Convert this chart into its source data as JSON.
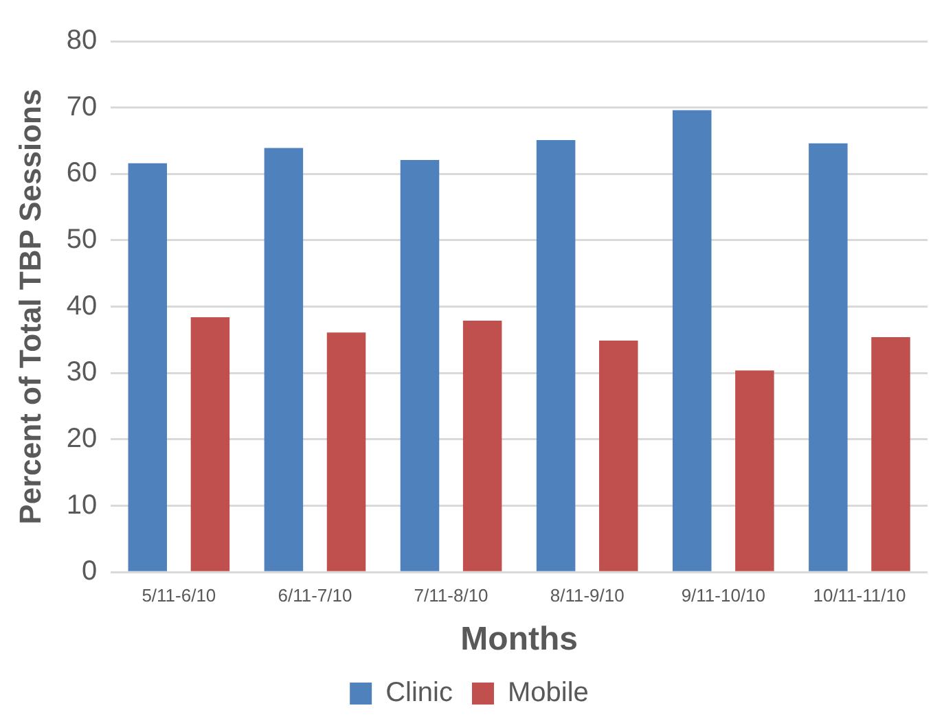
{
  "chart_data": {
    "type": "bar",
    "xlabel": "Months",
    "ylabel": "Percent of Total TBP Sessions",
    "categories": [
      "5/11-6/10",
      "6/11-7/10",
      "7/11-8/10",
      "8/11-9/10",
      "9/11-10/10",
      "10/11-11/10"
    ],
    "series": [
      {
        "name": "Clinic",
        "color": "#4f81bd",
        "values": [
          61.6,
          63.9,
          62.1,
          65.1,
          69.6,
          64.6
        ]
      },
      {
        "name": "Mobile",
        "color": "#c0504d",
        "values": [
          38.4,
          36.1,
          37.9,
          34.9,
          30.4,
          35.4
        ]
      }
    ],
    "ylim": [
      0,
      80
    ],
    "yticks": [
      0,
      10,
      20,
      30,
      40,
      50,
      60,
      70,
      80
    ],
    "grid": "y",
    "legend": "bottom"
  }
}
